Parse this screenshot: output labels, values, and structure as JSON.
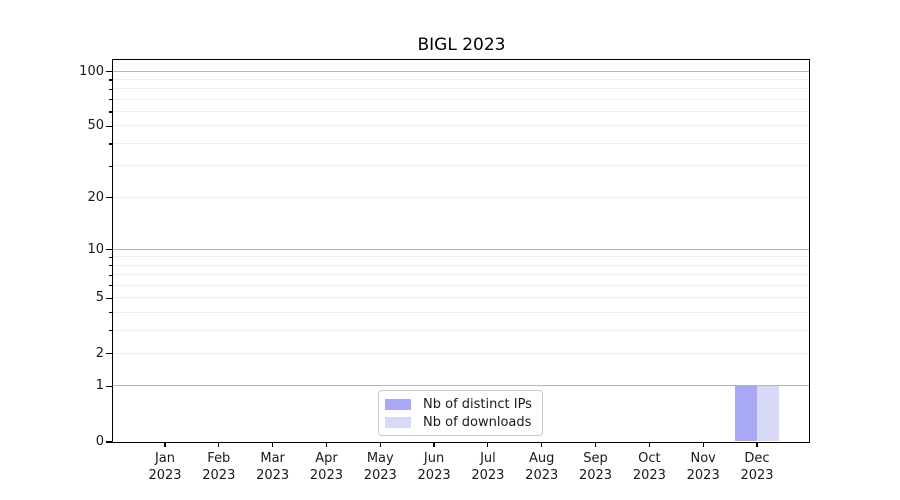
{
  "figure": {
    "title": "BIGL 2023"
  },
  "chart_data": {
    "type": "bar",
    "title": "BIGL 2023",
    "categories": [
      "Jan 2023",
      "Feb 2023",
      "Mar 2023",
      "Apr 2023",
      "May 2023",
      "Jun 2023",
      "Jul 2023",
      "Aug 2023",
      "Sep 2023",
      "Oct 2023",
      "Nov 2023",
      "Dec 2023"
    ],
    "series": [
      {
        "name": "Nb of distinct IPs",
        "color": "#a8a8f5",
        "values": [
          0,
          0,
          0,
          0,
          0,
          0,
          0,
          0,
          0,
          0,
          0,
          1
        ]
      },
      {
        "name": "Nb of downloads",
        "color": "#d8d8f7",
        "values": [
          0,
          0,
          0,
          0,
          0,
          0,
          0,
          0,
          0,
          0,
          0,
          1
        ]
      }
    ],
    "xlabel": "",
    "ylabel": "",
    "yscale": "log1p",
    "ylim": [
      0,
      115
    ],
    "yticks_labeled": [
      0,
      1,
      2,
      5,
      10,
      20,
      50,
      100
    ],
    "gridlines_major": [
      1,
      10,
      100
    ],
    "gridlines_minor": [
      2,
      3,
      4,
      5,
      6,
      7,
      8,
      9,
      20,
      30,
      40,
      50,
      60,
      70,
      80,
      90
    ],
    "grid": true,
    "legend_position": "lower center"
  },
  "legend": {
    "items": [
      {
        "label": "Nb of distinct IPs",
        "color": "#a8a8f5"
      },
      {
        "label": "Nb of downloads",
        "color": "#d8d8f7"
      }
    ]
  },
  "colors": {
    "grid_major": "#b6b6b6",
    "grid_minor": "#ededed",
    "spine": "#000000",
    "text": "#1a1a1a",
    "background": "#ffffff"
  }
}
